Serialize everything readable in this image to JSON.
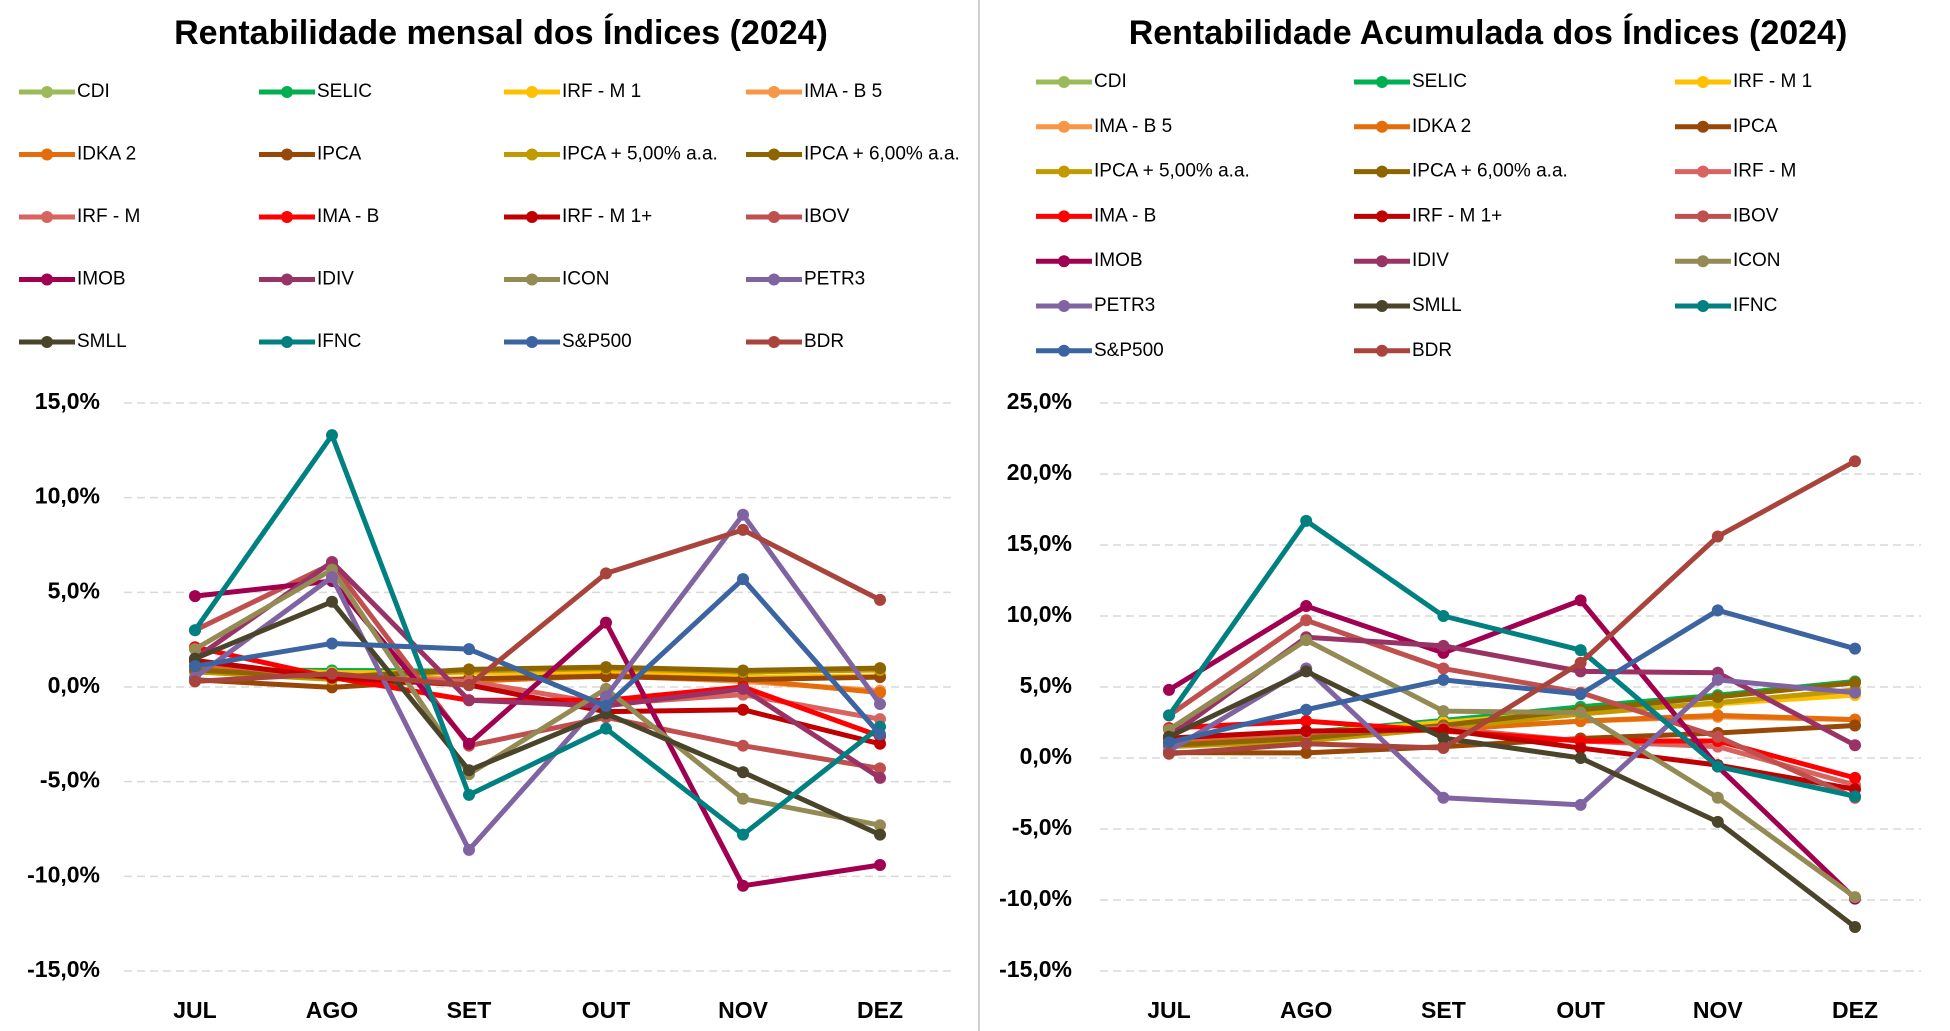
{
  "chart_data": [
    {
      "type": "line",
      "title": "Rentabilidade mensal dos Índices (2024)",
      "categories": [
        "JUL",
        "AGO",
        "SET",
        "OUT",
        "NOV",
        "DEZ"
      ],
      "ylim": [
        -15,
        15
      ],
      "yticks": [
        {
          "value": -15,
          "label": "-15,0%"
        },
        {
          "value": -10,
          "label": "-10,0%"
        },
        {
          "value": -5,
          "label": "-5,0%"
        },
        {
          "value": 0,
          "label": "0,0%"
        },
        {
          "value": 5,
          "label": "5,0%"
        },
        {
          "value": 10,
          "label": "10,0%"
        },
        {
          "value": 15,
          "label": "15,0%"
        }
      ],
      "grid": true,
      "series": [
        {
          "name": "CDI",
          "color": "#9bbb59",
          "values": [
            0.91,
            0.87,
            0.84,
            0.93,
            0.79,
            0.93
          ]
        },
        {
          "name": "SELIC",
          "color": "#00b050",
          "values": [
            0.91,
            0.87,
            0.84,
            0.93,
            0.79,
            0.93
          ]
        },
        {
          "name": "IRF - M 1",
          "color": "#ffc000",
          "values": [
            0.98,
            0.76,
            0.75,
            0.75,
            0.52,
            0.59
          ]
        },
        {
          "name": "IMA - B 5",
          "color": "#f79646",
          "values": [
            1.0,
            0.6,
            0.4,
            0.6,
            0.3,
            -0.2
          ]
        },
        {
          "name": "IDKA 2",
          "color": "#e46c0a",
          "values": [
            1.1,
            0.6,
            0.3,
            0.6,
            0.4,
            -0.3
          ]
        },
        {
          "name": "IPCA",
          "color": "#974706",
          "values": [
            0.38,
            -0.02,
            0.44,
            0.56,
            0.39,
            0.52
          ]
        },
        {
          "name": "IPCA + 5,00% a.a.",
          "color": "#c09a00",
          "values": [
            0.8,
            0.4,
            0.85,
            0.97,
            0.8,
            0.9
          ]
        },
        {
          "name": "IPCA + 6,00% a.a.",
          "color": "#8c6400",
          "values": [
            0.9,
            0.5,
            0.93,
            1.05,
            0.87,
            1.0
          ]
        },
        {
          "name": "IRF - M",
          "color": "#d9635f",
          "values": [
            1.3,
            0.5,
            0.3,
            -0.9,
            -0.4,
            -1.7
          ]
        },
        {
          "name": "IMA - B",
          "color": "#ff0000",
          "values": [
            2.1,
            0.5,
            -0.7,
            -0.7,
            0.0,
            -2.6
          ]
        },
        {
          "name": "IRF - M 1+",
          "color": "#c00000",
          "values": [
            1.4,
            0.5,
            0.1,
            -1.3,
            -1.2,
            -3.0
          ]
        },
        {
          "name": "IBOV",
          "color": "#c0504d",
          "values": [
            3.0,
            6.5,
            -3.1,
            -1.6,
            -3.1,
            -4.3
          ]
        },
        {
          "name": "IMOB",
          "color": "#a0004f",
          "values": [
            4.8,
            5.6,
            -3.0,
            3.4,
            -10.5,
            -9.4
          ]
        },
        {
          "name": "IDIV",
          "color": "#993366",
          "values": [
            1.5,
            6.6,
            -0.7,
            -1.0,
            -0.1,
            -4.8
          ]
        },
        {
          "name": "ICON",
          "color": "#948a54",
          "values": [
            2.0,
            6.2,
            -4.6,
            -0.1,
            -5.9,
            -7.3
          ]
        },
        {
          "name": "PETR3",
          "color": "#8064a2",
          "values": [
            0.5,
            5.8,
            -8.6,
            -0.5,
            9.1,
            -0.9
          ]
        },
        {
          "name": "SMLL",
          "color": "#4a452a",
          "values": [
            1.5,
            4.5,
            -4.4,
            -1.4,
            -4.5,
            -7.8
          ]
        },
        {
          "name": "IFNC",
          "color": "#008080",
          "values": [
            3.0,
            13.3,
            -5.7,
            -2.2,
            -7.8,
            -2.1
          ]
        },
        {
          "name": "S&P500",
          "color": "#3b64a0",
          "values": [
            1.1,
            2.3,
            2.0,
            -1.0,
            5.7,
            -2.5
          ]
        },
        {
          "name": "BDR",
          "color": "#a9443d",
          "values": [
            0.3,
            0.7,
            0.1,
            6.0,
            8.3,
            4.6
          ]
        }
      ]
    },
    {
      "type": "line",
      "title": "Rentabilidade Acumulada dos Índices (2024)",
      "categories": [
        "JUL",
        "AGO",
        "SET",
        "OUT",
        "NOV",
        "DEZ"
      ],
      "ylim": [
        -15,
        25
      ],
      "yticks": [
        {
          "value": -15,
          "label": "-15,0%"
        },
        {
          "value": -10,
          "label": "-10,0%"
        },
        {
          "value": -5,
          "label": "-5,0%"
        },
        {
          "value": 0,
          "label": "0,0%"
        },
        {
          "value": 5,
          "label": "5,0%"
        },
        {
          "value": 10,
          "label": "10,0%"
        },
        {
          "value": 15,
          "label": "15,0%"
        },
        {
          "value": 20,
          "label": "20,0%"
        },
        {
          "value": 25,
          "label": "25,0%"
        }
      ],
      "grid": true,
      "series": [
        {
          "name": "CDI",
          "color": "#9bbb59",
          "values": [
            0.91,
            1.79,
            2.64,
            3.6,
            4.42,
            5.39
          ]
        },
        {
          "name": "SELIC",
          "color": "#00b050",
          "values": [
            0.91,
            1.79,
            2.64,
            3.6,
            4.42,
            5.39
          ]
        },
        {
          "name": "IRF - M 1",
          "color": "#ffc000",
          "values": [
            0.98,
            1.75,
            2.51,
            3.28,
            3.82,
            4.43
          ]
        },
        {
          "name": "IMA - B 5",
          "color": "#f79646",
          "values": [
            1.0,
            1.6,
            2.0,
            2.6,
            2.9,
            2.7
          ]
        },
        {
          "name": "IDKA 2",
          "color": "#e46c0a",
          "values": [
            1.1,
            1.7,
            2.0,
            2.6,
            3.0,
            2.7
          ]
        },
        {
          "name": "IPCA",
          "color": "#974706",
          "values": [
            0.38,
            0.36,
            0.8,
            1.37,
            1.76,
            2.29
          ]
        },
        {
          "name": "IPCA + 5,00% a.a.",
          "color": "#c09a00",
          "values": [
            0.8,
            1.2,
            2.1,
            3.1,
            3.9,
            4.8
          ]
        },
        {
          "name": "IPCA + 6,00% a.a.",
          "color": "#8c6400",
          "values": [
            0.9,
            1.4,
            2.3,
            3.4,
            4.3,
            5.3
          ]
        },
        {
          "name": "IRF - M",
          "color": "#d9635f",
          "values": [
            1.3,
            1.8,
            2.1,
            1.2,
            0.8,
            -1.9
          ]
        },
        {
          "name": "IMA - B",
          "color": "#ff0000",
          "values": [
            2.1,
            2.6,
            1.9,
            1.2,
            1.2,
            -1.4
          ]
        },
        {
          "name": "IRF - M 1+",
          "color": "#c00000",
          "values": [
            1.4,
            1.9,
            2.0,
            0.7,
            -0.5,
            -2.2
          ]
        },
        {
          "name": "IBOV",
          "color": "#c0504d",
          "values": [
            3.0,
            9.7,
            6.3,
            4.6,
            1.5,
            -2.8
          ]
        },
        {
          "name": "IMOB",
          "color": "#a0004f",
          "values": [
            4.8,
            10.7,
            7.4,
            11.1,
            -0.6,
            -9.9
          ]
        },
        {
          "name": "IDIV",
          "color": "#993366",
          "values": [
            1.5,
            8.5,
            7.9,
            6.1,
            6.0,
            0.9
          ]
        },
        {
          "name": "ICON",
          "color": "#948a54",
          "values": [
            2.0,
            8.3,
            3.3,
            3.2,
            -2.8,
            -9.8
          ]
        },
        {
          "name": "PETR3",
          "color": "#8064a2",
          "values": [
            0.5,
            6.3,
            -2.8,
            -3.3,
            5.5,
            4.6
          ]
        },
        {
          "name": "SMLL",
          "color": "#4a452a",
          "values": [
            1.5,
            6.1,
            1.4,
            0.0,
            -4.5,
            -11.9
          ]
        },
        {
          "name": "IFNC",
          "color": "#008080",
          "values": [
            3.0,
            16.7,
            10.0,
            7.6,
            -0.6,
            -2.7
          ]
        },
        {
          "name": "S&P500",
          "color": "#3b64a0",
          "values": [
            1.1,
            3.4,
            5.5,
            4.5,
            10.4,
            7.7
          ]
        },
        {
          "name": "BDR",
          "color": "#a9443d",
          "values": [
            0.3,
            1.0,
            0.7,
            6.7,
            15.6,
            20.9
          ]
        }
      ]
    }
  ]
}
